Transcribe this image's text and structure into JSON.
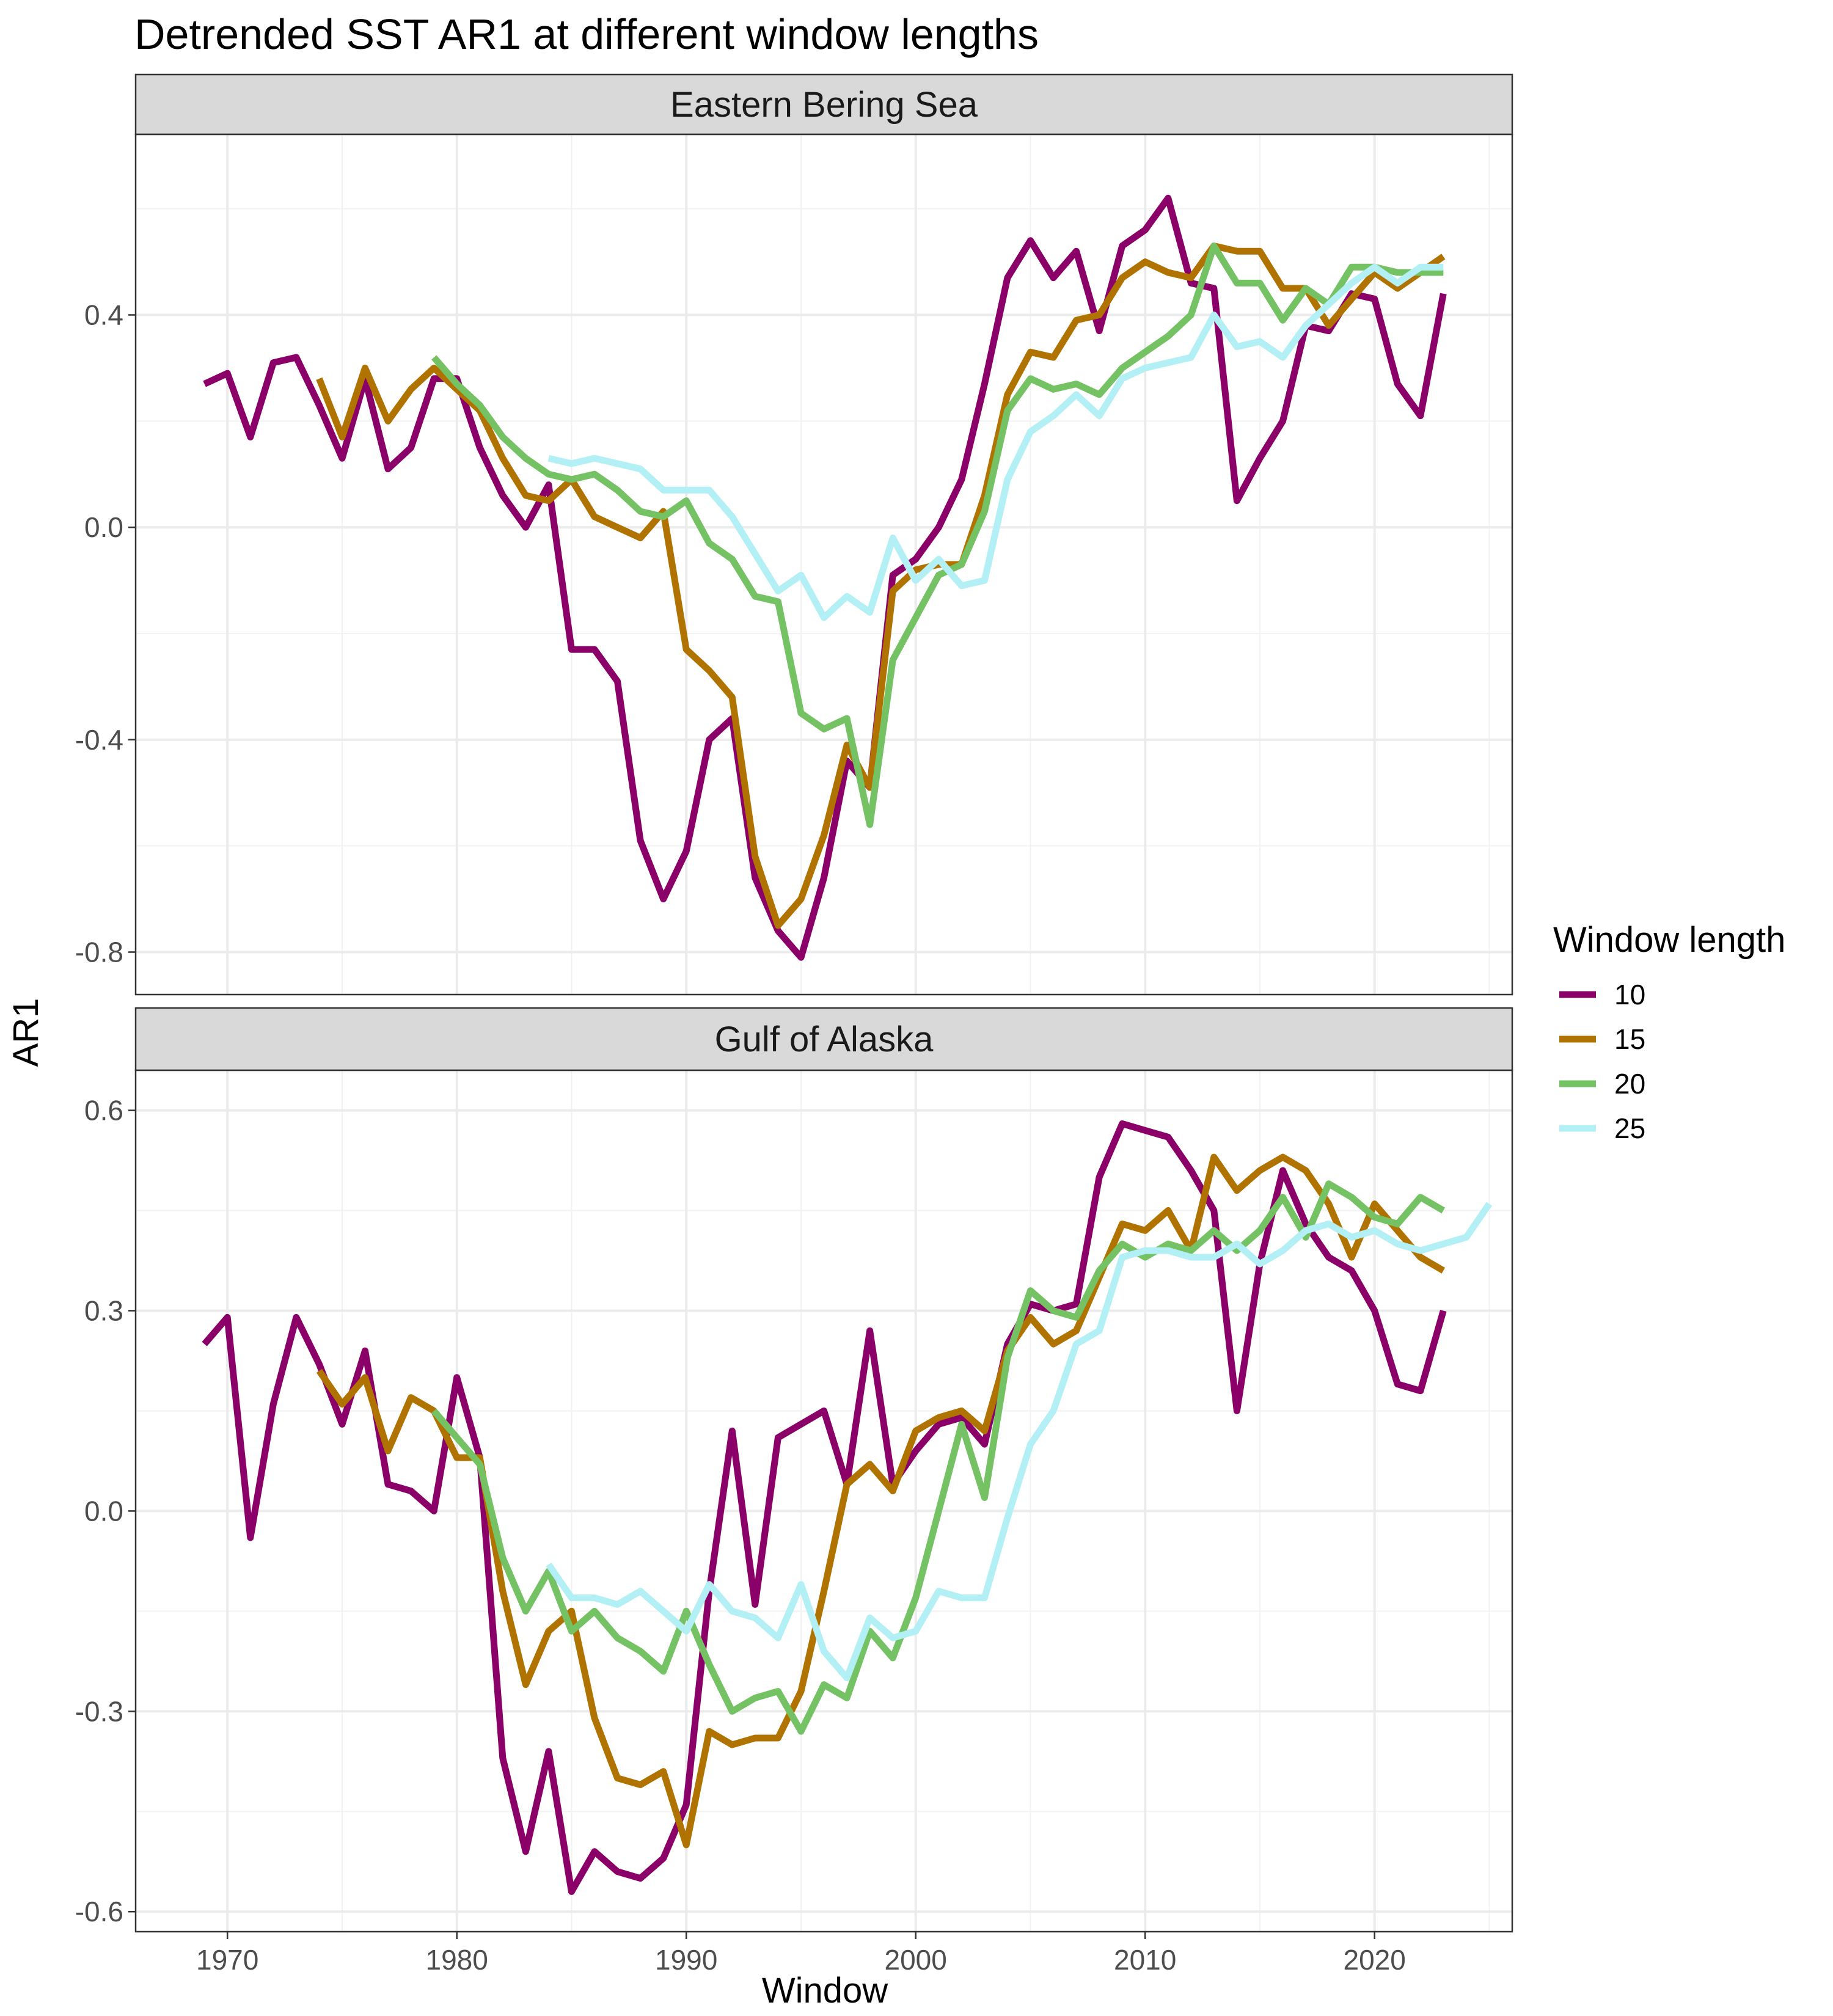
{
  "chart_data": {
    "type": "line",
    "title": "Detrended SST AR1 at different window lengths",
    "xlabel": "Window",
    "ylabel": "AR1",
    "legend": {
      "title": "Window length",
      "position": "right"
    },
    "colors": {
      "10": "#8B0068",
      "15": "#B07300",
      "20": "#74C264",
      "25": "#B3F0F5"
    },
    "grid": true,
    "x_ticks": [
      1970,
      1980,
      1990,
      2000,
      2010,
      2020
    ],
    "xlim": [
      1966,
      2026
    ],
    "panels": [
      {
        "name": "Eastern Bering Sea",
        "ylim": [
          -0.88,
          0.74
        ],
        "y_ticks": [
          -0.8,
          -0.4,
          0.0,
          0.4
        ],
        "y_tick_labels": [
          "-0.8",
          "-0.4",
          "0.0",
          "0.4"
        ],
        "series": [
          {
            "name": "10",
            "start": 1969,
            "values": [
              0.27,
              0.29,
              0.17,
              0.31,
              0.32,
              0.23,
              0.13,
              0.28,
              0.11,
              0.15,
              0.28,
              0.28,
              0.15,
              0.06,
              0.0,
              0.08,
              -0.23,
              -0.23,
              -0.29,
              -0.59,
              -0.7,
              -0.61,
              -0.4,
              -0.36,
              -0.66,
              -0.76,
              -0.81,
              -0.66,
              -0.44,
              -0.49,
              -0.09,
              -0.06,
              0.0,
              0.09,
              0.27,
              0.47,
              0.54,
              0.47,
              0.52,
              0.37,
              0.53,
              0.56,
              0.62,
              0.46,
              0.45,
              0.05,
              0.13,
              0.2,
              0.38,
              0.37,
              0.44,
              0.43,
              0.27,
              0.21,
              0.44
            ]
          },
          {
            "name": "15",
            "start": 1974,
            "values": [
              0.28,
              0.17,
              0.3,
              0.2,
              0.26,
              0.3,
              0.26,
              0.22,
              0.13,
              0.06,
              0.05,
              0.09,
              0.02,
              0.0,
              -0.02,
              0.03,
              -0.23,
              -0.27,
              -0.32,
              -0.62,
              -0.75,
              -0.7,
              -0.58,
              -0.41,
              -0.49,
              -0.12,
              -0.08,
              -0.07,
              -0.07,
              0.06,
              0.25,
              0.33,
              0.32,
              0.39,
              0.4,
              0.47,
              0.5,
              0.48,
              0.47,
              0.53,
              0.52,
              0.52,
              0.45,
              0.45,
              0.38,
              0.43,
              0.48,
              0.45,
              0.48,
              0.51
            ]
          },
          {
            "name": "20",
            "start": 1979,
            "values": [
              0.32,
              0.27,
              0.23,
              0.17,
              0.13,
              0.1,
              0.09,
              0.1,
              0.07,
              0.03,
              0.02,
              0.05,
              -0.03,
              -0.06,
              -0.13,
              -0.14,
              -0.35,
              -0.38,
              -0.36,
              -0.56,
              -0.25,
              -0.17,
              -0.09,
              -0.07,
              0.03,
              0.22,
              0.28,
              0.26,
              0.27,
              0.25,
              0.3,
              0.33,
              0.36,
              0.4,
              0.53,
              0.46,
              0.46,
              0.39,
              0.45,
              0.42,
              0.49,
              0.49,
              0.48,
              0.48,
              0.48
            ]
          },
          {
            "name": "25",
            "start": 1984,
            "values": [
              0.13,
              0.12,
              0.13,
              0.12,
              0.11,
              0.07,
              0.07,
              0.07,
              0.02,
              -0.05,
              -0.12,
              -0.09,
              -0.17,
              -0.13,
              -0.16,
              -0.02,
              -0.1,
              -0.06,
              -0.11,
              -0.1,
              0.09,
              0.18,
              0.21,
              0.25,
              0.21,
              0.28,
              0.3,
              0.31,
              0.32,
              0.4,
              0.34,
              0.35,
              0.32,
              0.38,
              0.42,
              0.46,
              0.49,
              0.46,
              0.49,
              0.49
            ]
          }
        ]
      },
      {
        "name": "Gulf of Alaska",
        "ylim": [
          -0.63,
          0.66
        ],
        "y_ticks": [
          -0.6,
          -0.3,
          0.0,
          0.3,
          0.6
        ],
        "y_tick_labels": [
          "-0.6",
          "-0.3",
          "0.0",
          "0.3",
          "0.6"
        ],
        "series": [
          {
            "name": "10",
            "start": 1969,
            "values": [
              0.25,
              0.29,
              -0.04,
              0.16,
              0.29,
              0.22,
              0.13,
              0.24,
              0.04,
              0.03,
              0.0,
              0.2,
              0.08,
              -0.37,
              -0.51,
              -0.36,
              -0.57,
              -0.51,
              -0.54,
              -0.55,
              -0.52,
              -0.44,
              -0.12,
              0.12,
              -0.14,
              0.11,
              0.13,
              0.15,
              0.04,
              0.27,
              0.04,
              0.09,
              0.13,
              0.14,
              0.1,
              0.25,
              0.31,
              0.3,
              0.31,
              0.5,
              0.58,
              0.57,
              0.56,
              0.51,
              0.45,
              0.15,
              0.37,
              0.51,
              0.43,
              0.38,
              0.36,
              0.3,
              0.19,
              0.18,
              0.3
            ]
          },
          {
            "name": "15",
            "start": 1974,
            "values": [
              0.21,
              0.16,
              0.2,
              0.09,
              0.17,
              0.15,
              0.08,
              0.08,
              -0.12,
              -0.26,
              -0.18,
              -0.15,
              -0.31,
              -0.4,
              -0.41,
              -0.39,
              -0.5,
              -0.33,
              -0.35,
              -0.34,
              -0.34,
              -0.27,
              -0.12,
              0.04,
              0.07,
              0.03,
              0.12,
              0.14,
              0.15,
              0.12,
              0.24,
              0.29,
              0.25,
              0.27,
              0.35,
              0.43,
              0.42,
              0.45,
              0.39,
              0.53,
              0.48,
              0.51,
              0.53,
              0.51,
              0.46,
              0.38,
              0.46,
              0.42,
              0.38,
              0.36
            ]
          },
          {
            "name": "20",
            "start": 1979,
            "values": [
              0.15,
              0.11,
              0.07,
              -0.07,
              -0.15,
              -0.09,
              -0.18,
              -0.15,
              -0.19,
              -0.21,
              -0.24,
              -0.15,
              -0.23,
              -0.3,
              -0.28,
              -0.27,
              -0.33,
              -0.26,
              -0.28,
              -0.18,
              -0.22,
              -0.13,
              0.0,
              0.13,
              0.02,
              0.23,
              0.33,
              0.3,
              0.29,
              0.36,
              0.4,
              0.38,
              0.4,
              0.39,
              0.42,
              0.39,
              0.42,
              0.47,
              0.41,
              0.49,
              0.47,
              0.44,
              0.43,
              0.47,
              0.45
            ]
          },
          {
            "name": "25",
            "start": 1984,
            "values": [
              -0.08,
              -0.13,
              -0.13,
              -0.14,
              -0.12,
              -0.15,
              -0.18,
              -0.11,
              -0.15,
              -0.16,
              -0.19,
              -0.11,
              -0.21,
              -0.25,
              -0.16,
              -0.19,
              -0.18,
              -0.12,
              -0.13,
              -0.13,
              -0.01,
              0.1,
              0.15,
              0.25,
              0.27,
              0.38,
              0.39,
              0.39,
              0.38,
              0.38,
              0.4,
              0.37,
              0.39,
              0.42,
              0.43,
              0.41,
              0.42,
              0.4,
              0.39,
              0.4,
              0.41,
              0.46
            ]
          }
        ]
      }
    ]
  }
}
